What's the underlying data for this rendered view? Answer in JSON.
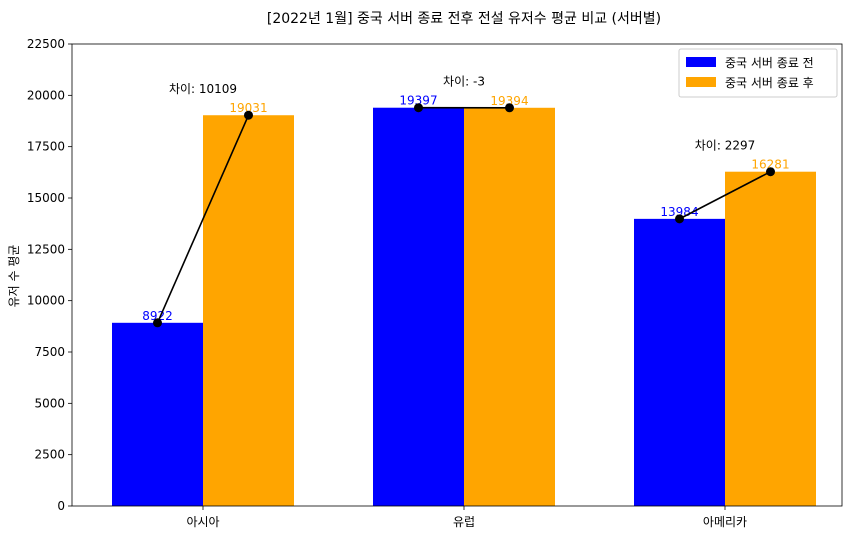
{
  "chart_data": {
    "type": "bar",
    "title": "[2022년 1월] 중국 서버 종료 전후 전설 유저수 평균 비교 (서버별)",
    "xlabel": "",
    "ylabel": "유저 수 평균",
    "ylim": [
      0,
      22500
    ],
    "yticks": [
      0,
      2500,
      5000,
      7500,
      10000,
      12500,
      15000,
      17500,
      20000,
      22500
    ],
    "categories": [
      "아시아",
      "유럽",
      "아메리카"
    ],
    "series": [
      {
        "name": "중국 서버 종료 전",
        "color": "#0000ff",
        "values": [
          8922,
          19397,
          13984
        ]
      },
      {
        "name": "중국 서버 종료 후",
        "color": "#ffa500",
        "values": [
          19031,
          19394,
          16281
        ]
      }
    ],
    "annotations": [
      "차이: 10109",
      "차이: -3",
      "차이: 2297"
    ],
    "legend": "top-right",
    "grid": false
  }
}
